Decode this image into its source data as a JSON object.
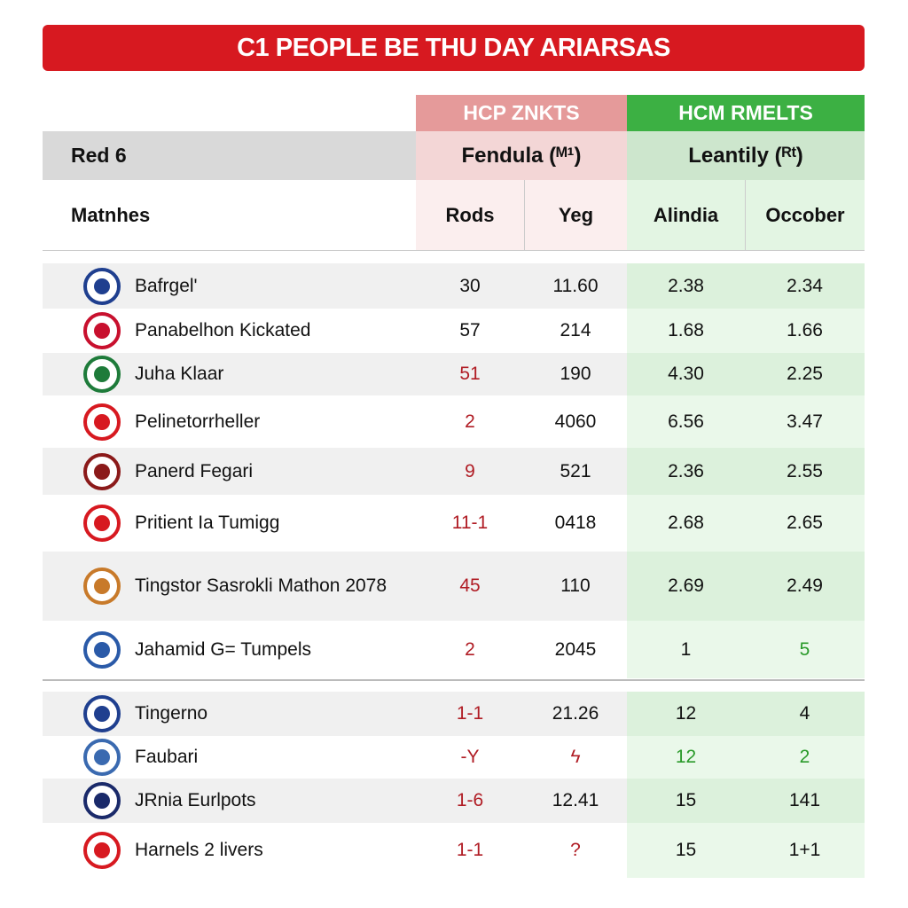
{
  "header": {
    "title": "C1 PEOPLE BE THU DAY ARIARSAS"
  },
  "table": {
    "group_headers": [
      "HCP ZNKTS",
      "HCM RMELTS"
    ],
    "sub_header": [
      "Red 6",
      "Fendula (ᴹ¹)",
      "Leantily (ᴿᵗ)"
    ],
    "columns": [
      "Matnhes",
      "Rods",
      "Yeg",
      "Alindia",
      "Occober"
    ],
    "rows": [
      [
        "Bafrgel'",
        "30",
        "11.60",
        "2.38",
        "2.34"
      ],
      [
        "Panabelhon Kickated",
        "57",
        "214",
        "1.68",
        "1.66"
      ],
      [
        "Juha Klaar",
        "51",
        "190",
        "4.30",
        "2.25"
      ],
      [
        "Pelinetorrheller",
        "2",
        "4060",
        "6.56",
        "3.47"
      ],
      [
        "Panerd Fegari",
        "9",
        "521",
        "2.36",
        "2.55"
      ],
      [
        "Pritient Ia Tumigg",
        "11-1",
        "0418",
        "2.68",
        "2.65"
      ],
      [
        "Tingstor Sasrokli Mathon 2078",
        "45",
        "110",
        "2.69",
        "2.49"
      ],
      [
        "Jahamid G= Tumpels",
        "2",
        "2045",
        "1",
        "5"
      ],
      [
        "Tingerno",
        "1-1",
        "21.26",
        "12",
        "4"
      ],
      [
        "Faubari",
        "-Y",
        "ϟ",
        "12",
        "2"
      ],
      [
        "JRnia Eurlpots",
        "1-6",
        "12.41",
        "15",
        "141"
      ],
      [
        "Harnels 2 livers",
        "1-1",
        "?",
        "15",
        "1+1"
      ]
    ]
  }
}
